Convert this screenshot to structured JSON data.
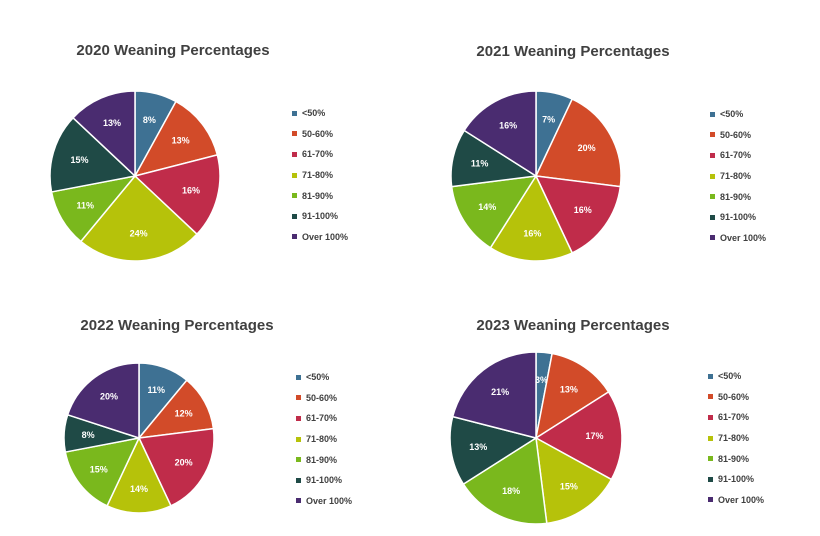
{
  "colors": {
    "<50%": "#3e7193",
    "50-60%": "#d24b29",
    "61-70%": "#c02c4a",
    "71-80%": "#b6c20a",
    "81-90%": "#7ab81d",
    "91-100%": "#1f4a46",
    "Over 100%": "#4a2c70"
  },
  "chart_data": [
    {
      "type": "pie",
      "title": "2020 Weaning Percentages",
      "categories": [
        "<50%",
        "50-60%",
        "61-70%",
        "71-80%",
        "81-90%",
        "91-100%",
        "Over 100%"
      ],
      "values": [
        8,
        13,
        16,
        24,
        11,
        15,
        13
      ],
      "labels": [
        "8%",
        "13%",
        "16%",
        "24%",
        "11%",
        "15%",
        "13%"
      ],
      "legend_position": "right"
    },
    {
      "type": "pie",
      "title": "2021 Weaning Percentages",
      "categories": [
        "<50%",
        "50-60%",
        "61-70%",
        "71-80%",
        "81-90%",
        "91-100%",
        "Over 100%"
      ],
      "values": [
        7,
        20,
        16,
        16,
        14,
        11,
        16
      ],
      "labels": [
        "7%",
        "20%",
        "16%",
        "16%",
        "14%",
        "11%",
        "16%"
      ],
      "legend_position": "right"
    },
    {
      "type": "pie",
      "title": "2022 Weaning Percentages",
      "categories": [
        "<50%",
        "50-60%",
        "61-70%",
        "71-80%",
        "81-90%",
        "91-100%",
        "Over 100%"
      ],
      "values": [
        11,
        12,
        20,
        14,
        15,
        8,
        20
      ],
      "labels": [
        "11%",
        "12%",
        "20%",
        "14%",
        "15%",
        "8%",
        "20%"
      ],
      "legend_position": "right"
    },
    {
      "type": "pie",
      "title": "2023 Weaning Percentages",
      "categories": [
        "<50%",
        "50-60%",
        "61-70%",
        "71-80%",
        "81-90%",
        "91-100%",
        "Over 100%"
      ],
      "values": [
        3,
        13,
        17,
        15,
        18,
        13,
        21
      ],
      "labels": [
        "3%",
        "13%",
        "17%",
        "15%",
        "18%",
        "13%",
        "21%"
      ],
      "legend_position": "right"
    }
  ]
}
